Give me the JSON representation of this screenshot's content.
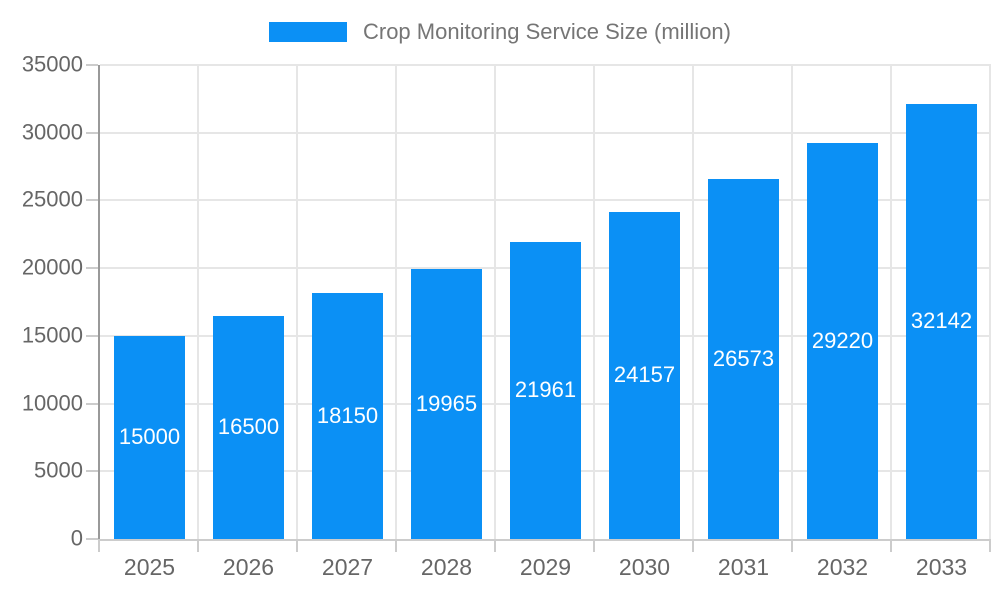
{
  "legend": {
    "label": "Crop Monitoring Service Size (million)"
  },
  "chart_data": {
    "type": "bar",
    "title": "Crop Monitoring Service Size (million)",
    "categories": [
      "2025",
      "2026",
      "2027",
      "2028",
      "2029",
      "2030",
      "2031",
      "2032",
      "2033"
    ],
    "values": [
      15000,
      16500,
      18150,
      19965,
      21961,
      24157,
      26573,
      29220,
      32142
    ],
    "xlabel": "",
    "ylabel": "",
    "ylim": [
      0,
      35000
    ],
    "ytick_step": 5000,
    "ytick_labels": [
      "0",
      "5000",
      "10000",
      "15000",
      "20000",
      "25000",
      "30000",
      "35000"
    ],
    "grid": true,
    "legend_position": "top-center",
    "data_labels": "white, centered inside bars",
    "colors": {
      "bar": "#0b90f5",
      "bar_value_label": "#ffffff",
      "axis_tick_label": "#666666",
      "legend_text": "#757575",
      "gridline": "#e6e6e6",
      "y_axis_line": "#999999",
      "x_axis_line": "#cccccc",
      "tick_mark": "#cccccc",
      "background": "#ffffff"
    }
  }
}
